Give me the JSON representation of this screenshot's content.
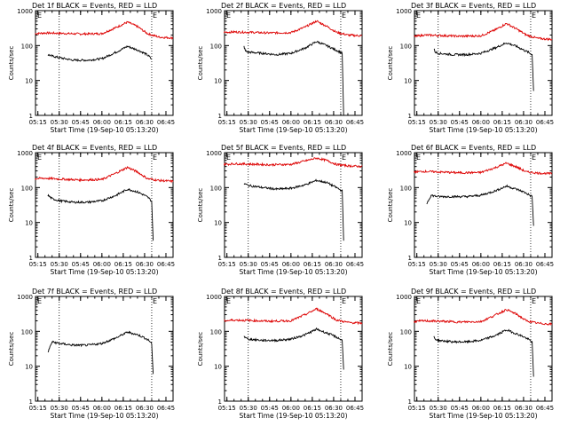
{
  "colors": {
    "events": "#000000",
    "lld": "#dd0000"
  },
  "chart_data": [
    {
      "type": "line",
      "title": "Det 1f BLACK = Events, RED = LLD",
      "xlabel": "Start Time (19-Sep-10 05:13:20)",
      "ylabel": "Counts/sec",
      "x_ticks": [
        "05:15",
        "05:30",
        "05:45",
        "06:00",
        "06:15",
        "06:30",
        "06:45"
      ],
      "y_ticks": [
        "1",
        "10",
        "100",
        "1000"
      ],
      "y_scale": "log",
      "ylim": [
        1,
        1000
      ],
      "markers": {
        "start_label": "E",
        "end_label": "E",
        "start_time": "05:30",
        "end_time": "06:35"
      },
      "series": [
        {
          "color": "#dd0000",
          "x": [
            "05:13",
            "05:20",
            "05:30",
            "05:45",
            "06:00",
            "06:10",
            "06:18",
            "06:25",
            "06:32",
            "06:40",
            "06:50"
          ],
          "y": [
            220,
            230,
            225,
            215,
            220,
            330,
            470,
            350,
            220,
            175,
            165
          ]
        },
        {
          "color": "#000000",
          "x": [
            "05:22",
            "05:25",
            "05:30",
            "05:40",
            "05:50",
            "06:00",
            "06:10",
            "06:18",
            "06:25",
            "06:30",
            "06:33",
            "06:35"
          ],
          "y": [
            55,
            50,
            45,
            38,
            38,
            42,
            65,
            95,
            75,
            60,
            50,
            40
          ]
        }
      ]
    },
    {
      "type": "line",
      "title": "Det 2f BLACK = Events, RED = LLD",
      "xlabel": "Start Time (19-Sep-10 05:13:20)",
      "ylabel": "Counts/sec",
      "x_ticks": [
        "05:15",
        "05:30",
        "05:45",
        "06:00",
        "06:15",
        "06:30",
        "06:45"
      ],
      "y_ticks": [
        "1",
        "10",
        "100",
        "1000"
      ],
      "y_scale": "log",
      "ylim": [
        1,
        1000
      ],
      "markers": {
        "start_label": "E",
        "end_label": "E",
        "start_time": "05:30",
        "end_time": "06:35"
      },
      "series": [
        {
          "color": "#dd0000",
          "x": [
            "05:13",
            "05:20",
            "05:30",
            "05:45",
            "06:00",
            "06:10",
            "06:18",
            "06:25",
            "06:32",
            "06:40",
            "06:50"
          ],
          "y": [
            240,
            245,
            240,
            230,
            235,
            340,
            500,
            360,
            240,
            200,
            190
          ]
        },
        {
          "color": "#000000",
          "x": [
            "05:27",
            "05:28",
            "05:30",
            "05:40",
            "05:50",
            "06:00",
            "06:10",
            "06:18",
            "06:25",
            "06:30",
            "06:33",
            "06:36",
            "06:37"
          ],
          "y": [
            95,
            70,
            65,
            60,
            55,
            60,
            85,
            130,
            100,
            80,
            70,
            60,
            1
          ]
        }
      ]
    },
    {
      "type": "line",
      "title": "Det 3f BLACK = Events, RED = LLD",
      "xlabel": "Start Time (19-Sep-10 05:13:20)",
      "ylabel": "Counts/sec",
      "x_ticks": [
        "05:15",
        "05:30",
        "05:45",
        "06:00",
        "06:15",
        "06:30",
        "06:45"
      ],
      "y_ticks": [
        "1",
        "10",
        "100",
        "1000"
      ],
      "y_scale": "log",
      "ylim": [
        1,
        1000
      ],
      "markers": {
        "start_label": "E",
        "end_label": "E",
        "start_time": "05:30",
        "end_time": "06:35"
      },
      "series": [
        {
          "color": "#dd0000",
          "x": [
            "05:13",
            "05:20",
            "05:30",
            "05:45",
            "06:00",
            "06:10",
            "06:18",
            "06:25",
            "06:32",
            "06:40",
            "06:50"
          ],
          "y": [
            180,
            200,
            195,
            185,
            190,
            280,
            430,
            300,
            200,
            160,
            150
          ]
        },
        {
          "color": "#000000",
          "x": [
            "05:27",
            "05:28",
            "05:30",
            "05:40",
            "05:50",
            "06:00",
            "06:10",
            "06:18",
            "06:25",
            "06:30",
            "06:33",
            "06:36",
            "06:37"
          ],
          "y": [
            80,
            65,
            60,
            55,
            55,
            60,
            85,
            120,
            95,
            75,
            65,
            55,
            5
          ]
        }
      ]
    },
    {
      "type": "line",
      "title": "Det 4f BLACK = Events, RED = LLD",
      "xlabel": "Start Time (19-Sep-10 05:13:20)",
      "ylabel": "Counts/sec",
      "x_ticks": [
        "05:15",
        "05:30",
        "05:45",
        "06:00",
        "06:15",
        "06:30",
        "06:45"
      ],
      "y_ticks": [
        "1",
        "10",
        "100",
        "1000"
      ],
      "y_scale": "log",
      "ylim": [
        1,
        1000
      ],
      "markers": {
        "start_label": "E",
        "end_label": "E",
        "start_time": "05:30",
        "end_time": "06:35"
      },
      "series": [
        {
          "color": "#dd0000",
          "x": [
            "05:13",
            "05:20",
            "05:30",
            "05:45",
            "06:00",
            "06:10",
            "06:18",
            "06:25",
            "06:32",
            "06:40",
            "06:50"
          ],
          "y": [
            180,
            185,
            175,
            165,
            170,
            260,
            380,
            280,
            180,
            160,
            150
          ]
        },
        {
          "color": "#000000",
          "x": [
            "05:22",
            "05:25",
            "05:30",
            "05:40",
            "05:50",
            "06:00",
            "06:10",
            "06:18",
            "06:25",
            "06:30",
            "06:33",
            "06:35",
            "06:36"
          ],
          "y": [
            60,
            48,
            42,
            38,
            38,
            42,
            60,
            90,
            75,
            60,
            50,
            40,
            3
          ]
        }
      ]
    },
    {
      "type": "line",
      "title": "Det 5f BLACK = Events, RED = LLD",
      "xlabel": "Start Time (19-Sep-10 05:13:20)",
      "ylabel": "Counts/sec",
      "x_ticks": [
        "05:15",
        "05:30",
        "05:45",
        "06:00",
        "06:15",
        "06:30",
        "06:45"
      ],
      "y_ticks": [
        "1",
        "10",
        "100",
        "1000"
      ],
      "y_scale": "log",
      "ylim": [
        1,
        1000
      ],
      "markers": {
        "start_label": "E",
        "end_label": "E",
        "start_time": "05:30",
        "end_time": "06:35"
      },
      "series": [
        {
          "color": "#dd0000",
          "x": [
            "05:13",
            "05:20",
            "05:30",
            "05:45",
            "06:00",
            "06:10",
            "06:18",
            "06:25",
            "06:32",
            "06:40",
            "06:50"
          ],
          "y": [
            460,
            480,
            470,
            450,
            460,
            580,
            700,
            600,
            460,
            420,
            400
          ]
        },
        {
          "color": "#000000",
          "x": [
            "05:27",
            "05:28",
            "05:30",
            "05:40",
            "05:50",
            "06:00",
            "06:10",
            "06:18",
            "06:25",
            "06:30",
            "06:33",
            "06:36",
            "06:37"
          ],
          "y": [
            130,
            125,
            115,
            100,
            90,
            95,
            120,
            160,
            140,
            110,
            95,
            80,
            3
          ]
        }
      ]
    },
    {
      "type": "line",
      "title": "Det 6f BLACK = Events, RED = LLD",
      "xlabel": "Start Time (19-Sep-10 05:13:20)",
      "ylabel": "Counts/sec",
      "x_ticks": [
        "05:15",
        "05:30",
        "05:45",
        "06:00",
        "06:15",
        "06:30",
        "06:45"
      ],
      "y_ticks": [
        "1",
        "10",
        "100",
        "1000"
      ],
      "y_scale": "log",
      "ylim": [
        1,
        1000
      ],
      "markers": {
        "start_label": "E",
        "end_label": "E",
        "start_time": "05:30",
        "end_time": "06:35"
      },
      "series": [
        {
          "color": "#dd0000",
          "x": [
            "05:13",
            "05:20",
            "05:30",
            "05:45",
            "06:00",
            "06:10",
            "06:18",
            "06:25",
            "06:32",
            "06:40",
            "06:50"
          ],
          "y": [
            280,
            290,
            280,
            265,
            270,
            370,
            500,
            390,
            280,
            260,
            250
          ]
        },
        {
          "color": "#000000",
          "x": [
            "05:22",
            "05:25",
            "05:30",
            "05:40",
            "05:50",
            "06:00",
            "06:10",
            "06:18",
            "06:25",
            "06:30",
            "06:33",
            "06:36",
            "06:37"
          ],
          "y": [
            35,
            60,
            55,
            55,
            55,
            60,
            80,
            110,
            90,
            75,
            65,
            55,
            8
          ]
        }
      ]
    },
    {
      "type": "line",
      "title": "Det 7f BLACK = Events, RED = LLD",
      "xlabel": "Start Time (19-Sep-10 05:13:20)",
      "ylabel": "Counts/sec",
      "x_ticks": [
        "05:15",
        "05:30",
        "05:45",
        "06:00",
        "06:15",
        "06:30",
        "06:45"
      ],
      "y_ticks": [
        "1",
        "10",
        "100",
        "1000"
      ],
      "y_scale": "log",
      "ylim": [
        1,
        1000
      ],
      "markers": {
        "start_label": "E",
        "end_label": "E",
        "start_time": "05:30",
        "end_time": "06:35"
      },
      "series": [
        {
          "color": "#000000",
          "x": [
            "05:22",
            "05:25",
            "05:30",
            "05:40",
            "05:50",
            "06:00",
            "06:10",
            "06:18",
            "06:25",
            "06:30",
            "06:33",
            "06:35",
            "06:36"
          ],
          "y": [
            25,
            50,
            45,
            40,
            40,
            45,
            65,
            95,
            80,
            65,
            55,
            45,
            6
          ]
        }
      ]
    },
    {
      "type": "line",
      "title": "Det 8f BLACK = Events, RED = LLD",
      "xlabel": "Start Time (19-Sep-10 05:13:20)",
      "ylabel": "Counts/sec",
      "x_ticks": [
        "05:15",
        "05:30",
        "05:45",
        "06:00",
        "06:15",
        "06:30",
        "06:45"
      ],
      "y_ticks": [
        "1",
        "10",
        "100",
        "1000"
      ],
      "y_scale": "log",
      "ylim": [
        1,
        1000
      ],
      "markers": {
        "start_label": "E",
        "end_label": "E",
        "start_time": "05:30",
        "end_time": "06:35"
      },
      "series": [
        {
          "color": "#dd0000",
          "x": [
            "05:13",
            "05:20",
            "05:30",
            "05:45",
            "06:00",
            "06:10",
            "06:18",
            "06:25",
            "06:32",
            "06:40",
            "06:50"
          ],
          "y": [
            200,
            210,
            205,
            195,
            200,
            300,
            440,
            320,
            210,
            180,
            170
          ]
        },
        {
          "color": "#000000",
          "x": [
            "05:27",
            "05:28",
            "05:30",
            "05:40",
            "05:50",
            "06:00",
            "06:10",
            "06:18",
            "06:25",
            "06:30",
            "06:33",
            "06:36",
            "06:37"
          ],
          "y": [
            75,
            65,
            60,
            55,
            55,
            60,
            80,
            115,
            90,
            75,
            65,
            55,
            8
          ]
        }
      ]
    },
    {
      "type": "line",
      "title": "Det 9f BLACK = Events, RED = LLD",
      "xlabel": "Start Time (19-Sep-10 05:13:20)",
      "ylabel": "Counts/sec",
      "x_ticks": [
        "05:15",
        "05:30",
        "05:45",
        "06:00",
        "06:15",
        "06:30",
        "06:45"
      ],
      "y_ticks": [
        "1",
        "10",
        "100",
        "1000"
      ],
      "y_scale": "log",
      "ylim": [
        1,
        1000
      ],
      "markers": {
        "start_label": "E",
        "end_label": "E",
        "start_time": "05:30",
        "end_time": "06:35"
      },
      "series": [
        {
          "color": "#dd0000",
          "x": [
            "05:13",
            "05:20",
            "05:30",
            "05:45",
            "06:00",
            "06:10",
            "06:18",
            "06:25",
            "06:32",
            "06:40",
            "06:50"
          ],
          "y": [
            190,
            200,
            195,
            185,
            190,
            290,
            420,
            310,
            200,
            170,
            160
          ]
        },
        {
          "color": "#000000",
          "x": [
            "05:27",
            "05:28",
            "05:30",
            "05:40",
            "05:50",
            "06:00",
            "06:10",
            "06:18",
            "06:25",
            "06:30",
            "06:33",
            "06:36",
            "06:37"
          ],
          "y": [
            70,
            60,
            55,
            50,
            50,
            55,
            75,
            110,
            85,
            70,
            60,
            50,
            5
          ]
        }
      ]
    }
  ]
}
